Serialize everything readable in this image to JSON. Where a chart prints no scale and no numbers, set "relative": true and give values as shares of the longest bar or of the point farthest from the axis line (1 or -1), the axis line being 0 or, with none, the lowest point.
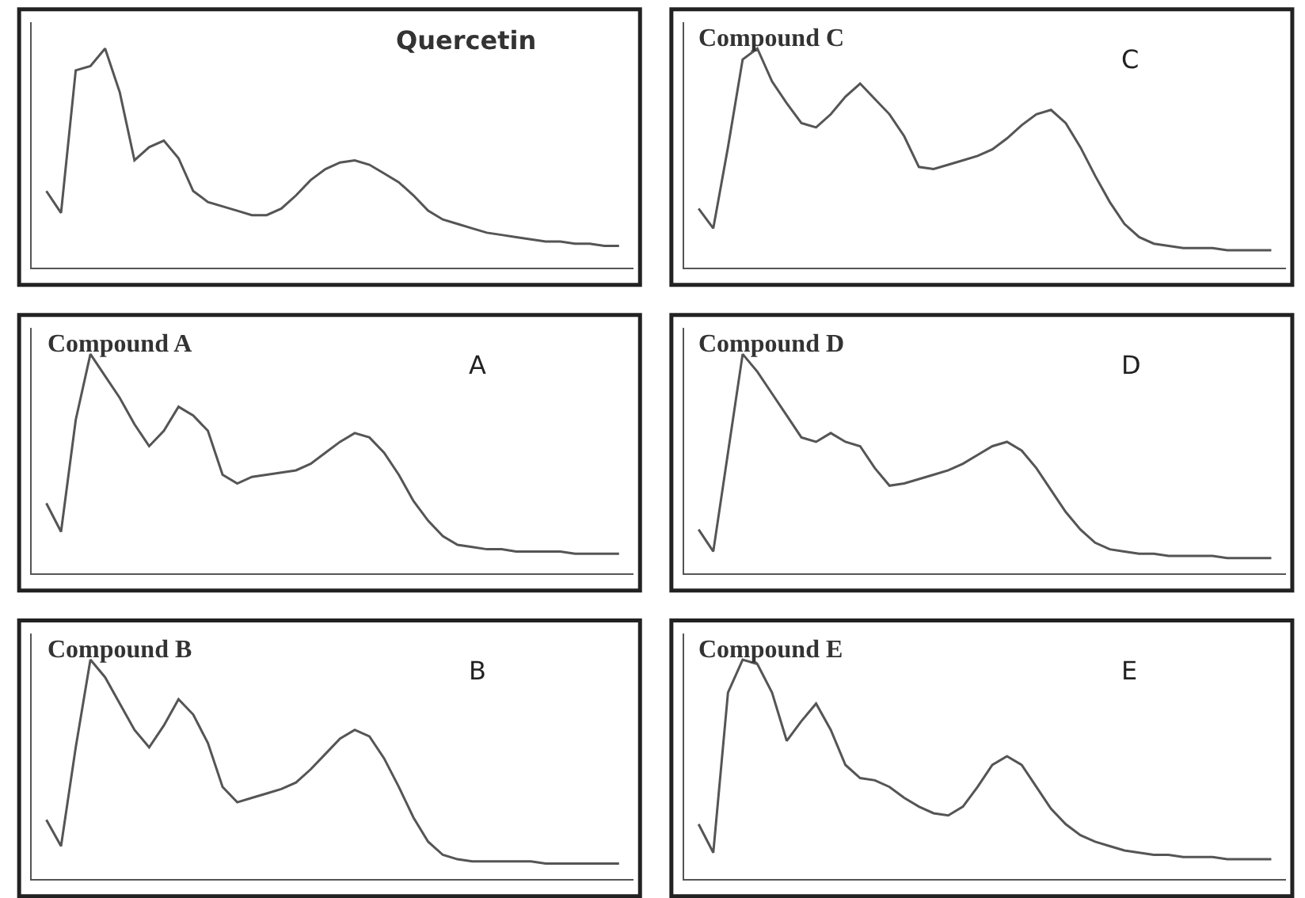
{
  "chart_data": [
    {
      "type": "line",
      "relative": true,
      "title": "Quercetin",
      "categories": [
        null,
        null,
        null,
        null,
        null,
        null,
        null,
        null,
        null,
        null,
        null,
        null,
        null,
        null,
        null,
        null,
        null,
        null,
        null,
        null,
        null,
        null,
        null,
        null,
        null,
        null,
        null,
        null,
        null,
        null,
        null,
        null,
        null,
        null,
        null,
        null,
        null,
        null,
        null,
        null
      ],
      "series": [
        {
          "color": "#555555",
          "values": [
            0.35,
            0.25,
            0.9,
            0.92,
            1.0,
            0.8,
            0.49,
            0.55,
            0.58,
            0.5,
            0.35,
            0.3,
            0.28,
            0.26,
            0.24,
            0.24,
            0.27,
            0.33,
            0.4,
            0.45,
            0.48,
            0.49,
            0.47,
            0.43,
            0.39,
            0.33,
            0.26,
            0.22,
            0.2,
            0.18,
            0.16,
            0.15,
            0.14,
            0.13,
            0.12,
            0.12,
            0.11,
            0.11,
            0.1,
            0.1
          ]
        }
      ]
    },
    {
      "type": "line",
      "relative": true,
      "title": "Compound C",
      "annotations": [
        "C"
      ],
      "categories": [
        null,
        null,
        null,
        null,
        null,
        null,
        null,
        null,
        null,
        null,
        null,
        null,
        null,
        null,
        null,
        null,
        null,
        null,
        null,
        null,
        null,
        null,
        null,
        null,
        null,
        null,
        null,
        null,
        null,
        null,
        null,
        null,
        null,
        null,
        null,
        null,
        null,
        null,
        null,
        null
      ],
      "series": [
        {
          "color": "#555555",
          "values": [
            0.27,
            0.18,
            0.55,
            0.95,
            1.0,
            0.85,
            0.75,
            0.66,
            0.64,
            0.7,
            0.78,
            0.84,
            0.77,
            0.7,
            0.6,
            0.46,
            0.45,
            0.47,
            0.49,
            0.51,
            0.54,
            0.59,
            0.65,
            0.7,
            0.72,
            0.66,
            0.55,
            0.42,
            0.3,
            0.2,
            0.14,
            0.11,
            0.1,
            0.09,
            0.09,
            0.09,
            0.08,
            0.08,
            0.08,
            0.08
          ]
        }
      ]
    },
    {
      "type": "line",
      "relative": true,
      "title": "Compound A",
      "annotations": [
        "A"
      ],
      "categories": [
        null,
        null,
        null,
        null,
        null,
        null,
        null,
        null,
        null,
        null,
        null,
        null,
        null,
        null,
        null,
        null,
        null,
        null,
        null,
        null,
        null,
        null,
        null,
        null,
        null,
        null,
        null,
        null,
        null,
        null,
        null,
        null,
        null,
        null,
        null,
        null,
        null,
        null,
        null,
        null
      ],
      "series": [
        {
          "color": "#555555",
          "values": [
            0.32,
            0.19,
            0.7,
            1.0,
            0.9,
            0.8,
            0.68,
            0.58,
            0.65,
            0.76,
            0.72,
            0.65,
            0.45,
            0.41,
            0.44,
            0.45,
            0.46,
            0.47,
            0.5,
            0.55,
            0.6,
            0.64,
            0.62,
            0.55,
            0.45,
            0.33,
            0.24,
            0.17,
            0.13,
            0.12,
            0.11,
            0.11,
            0.1,
            0.1,
            0.1,
            0.1,
            0.09,
            0.09,
            0.09,
            0.09
          ]
        }
      ]
    },
    {
      "type": "line",
      "relative": true,
      "title": "Compound D",
      "annotations": [
        "D"
      ],
      "categories": [
        null,
        null,
        null,
        null,
        null,
        null,
        null,
        null,
        null,
        null,
        null,
        null,
        null,
        null,
        null,
        null,
        null,
        null,
        null,
        null,
        null,
        null,
        null,
        null,
        null,
        null,
        null,
        null,
        null,
        null,
        null,
        null,
        null,
        null,
        null,
        null,
        null,
        null,
        null,
        null
      ],
      "series": [
        {
          "color": "#555555",
          "values": [
            0.2,
            0.1,
            0.55,
            1.0,
            0.92,
            0.82,
            0.72,
            0.62,
            0.6,
            0.64,
            0.6,
            0.58,
            0.48,
            0.4,
            0.41,
            0.43,
            0.45,
            0.47,
            0.5,
            0.54,
            0.58,
            0.6,
            0.56,
            0.48,
            0.38,
            0.28,
            0.2,
            0.14,
            0.11,
            0.1,
            0.09,
            0.09,
            0.08,
            0.08,
            0.08,
            0.08,
            0.07,
            0.07,
            0.07,
            0.07
          ]
        }
      ]
    },
    {
      "type": "line",
      "relative": true,
      "title": "Compound B",
      "annotations": [
        "B"
      ],
      "categories": [
        null,
        null,
        null,
        null,
        null,
        null,
        null,
        null,
        null,
        null,
        null,
        null,
        null,
        null,
        null,
        null,
        null,
        null,
        null,
        null,
        null,
        null,
        null,
        null,
        null,
        null,
        null,
        null,
        null,
        null,
        null,
        null,
        null,
        null,
        null,
        null,
        null,
        null,
        null,
        null
      ],
      "series": [
        {
          "color": "#555555",
          "values": [
            0.27,
            0.15,
            0.6,
            1.0,
            0.92,
            0.8,
            0.68,
            0.6,
            0.7,
            0.82,
            0.75,
            0.62,
            0.42,
            0.35,
            0.37,
            0.39,
            0.41,
            0.44,
            0.5,
            0.57,
            0.64,
            0.68,
            0.65,
            0.55,
            0.42,
            0.28,
            0.17,
            0.11,
            0.09,
            0.08,
            0.08,
            0.08,
            0.08,
            0.08,
            0.07,
            0.07,
            0.07,
            0.07,
            0.07,
            0.07
          ]
        }
      ]
    },
    {
      "type": "line",
      "relative": true,
      "title": "Compound E",
      "annotations": [
        "E"
      ],
      "categories": [
        null,
        null,
        null,
        null,
        null,
        null,
        null,
        null,
        null,
        null,
        null,
        null,
        null,
        null,
        null,
        null,
        null,
        null,
        null,
        null,
        null,
        null,
        null,
        null,
        null,
        null,
        null,
        null,
        null,
        null,
        null,
        null,
        null,
        null,
        null,
        null,
        null,
        null,
        null,
        null
      ],
      "series": [
        {
          "color": "#555555",
          "values": [
            0.25,
            0.12,
            0.85,
            1.0,
            0.98,
            0.85,
            0.63,
            0.72,
            0.8,
            0.68,
            0.52,
            0.46,
            0.45,
            0.42,
            0.37,
            0.33,
            0.3,
            0.29,
            0.33,
            0.42,
            0.52,
            0.56,
            0.52,
            0.42,
            0.32,
            0.25,
            0.2,
            0.17,
            0.15,
            0.13,
            0.12,
            0.11,
            0.11,
            0.1,
            0.1,
            0.1,
            0.09,
            0.09,
            0.09,
            0.09
          ]
        }
      ]
    }
  ]
}
